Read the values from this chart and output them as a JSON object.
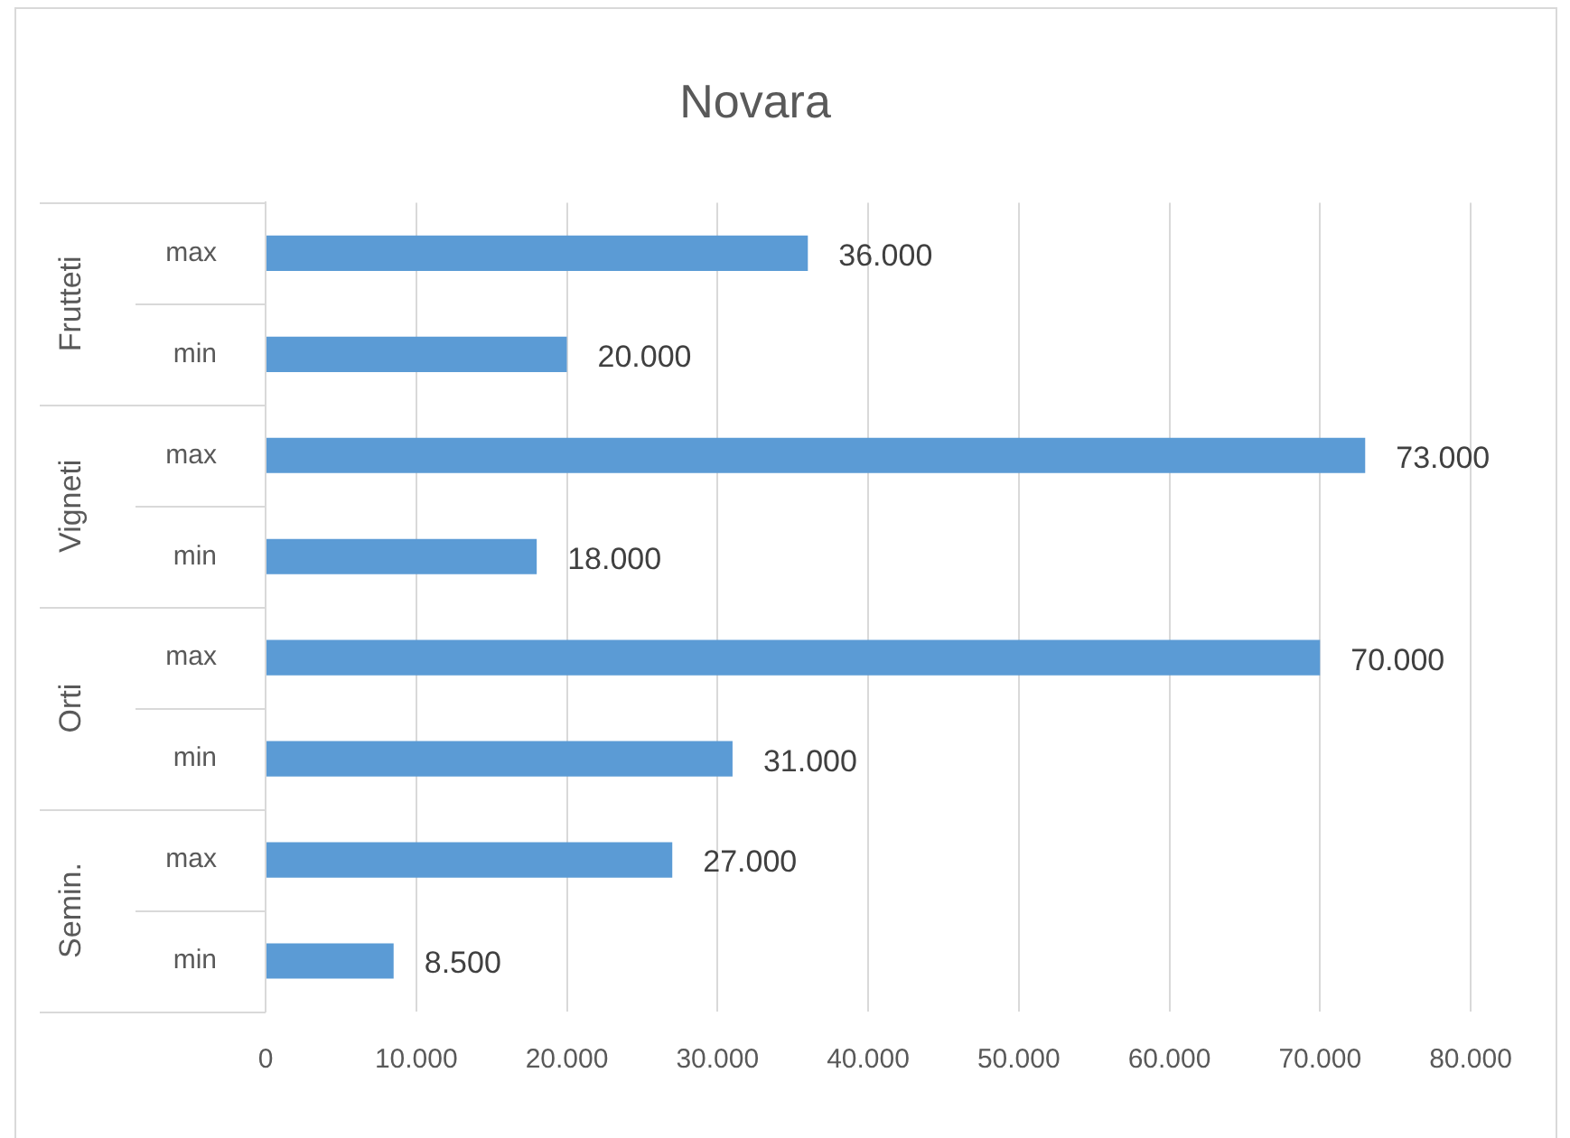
{
  "chart_data": {
    "type": "bar",
    "orientation": "horizontal",
    "title": "Novara",
    "categories": [
      "max",
      "min",
      "max",
      "min",
      "max",
      "min",
      "max",
      "min"
    ],
    "values": [
      36000,
      20000,
      73000,
      18000,
      70000,
      31000,
      27000,
      8500
    ],
    "color": "#5b9bd5",
    "value_labels": [
      "36.000",
      "20.000",
      "73.000",
      "18.000",
      "70.000",
      "31.000",
      "27.000",
      "8.500"
    ],
    "xlim": [
      0,
      80000
    ],
    "xticks": [
      0,
      {
        "value": 10000,
        "label": "10.000"
      },
      {
        "value": 20000,
        "label": "20.000"
      },
      {
        "value": 30000,
        "label": "30.000"
      },
      {
        "value": 40000,
        "label": "40.000"
      },
      {
        "value": 50000,
        "label": "50.000"
      },
      {
        "value": 60000,
        "label": "60.000"
      },
      {
        "value": 70000,
        "label": "70.000"
      },
      {
        "value": 80000,
        "label": "80.000"
      }
    ],
    "grid": "x",
    "annotations": [
      "Frutteti",
      "Vigneti",
      "Orti",
      "Semin."
    ]
  }
}
